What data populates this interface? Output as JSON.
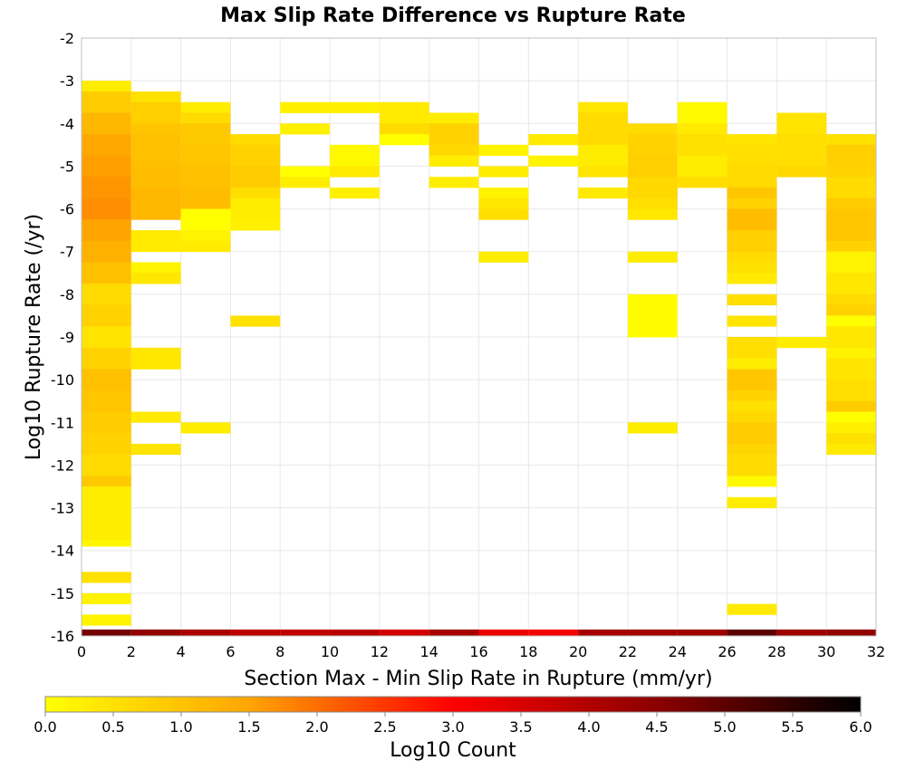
{
  "chart_data": {
    "type": "heatmap",
    "title": "Max Slip Rate Difference vs Rupture Rate",
    "xlabel": "Section Max - Min Slip Rate in Rupture (mm/yr)",
    "ylabel": "Log10 Rupture Rate (/yr)",
    "xlim": [
      0,
      32
    ],
    "ylim": [
      -16,
      -2
    ],
    "x_ticks": [
      "0",
      "2",
      "4",
      "6",
      "8",
      "10",
      "12",
      "14",
      "16",
      "18",
      "20",
      "22",
      "24",
      "26",
      "28",
      "30",
      "32"
    ],
    "y_ticks": [
      "-2",
      "-3",
      "-4",
      "-5",
      "-6",
      "-7",
      "-8",
      "-9",
      "-10",
      "-11",
      "-12",
      "-13",
      "-14",
      "-15",
      "-16"
    ],
    "x_bin_width": 2,
    "y_bin_height": 0.25,
    "grid": true,
    "colorbar": {
      "label": "Log10 Count",
      "range": [
        0,
        6
      ],
      "ticks": [
        "0.0",
        "0.5",
        "1.0",
        "1.5",
        "2.0",
        "2.5",
        "3.0",
        "3.5",
        "4.0",
        "4.5",
        "5.0",
        "5.5",
        "6.0"
      ],
      "colors": [
        "#ffff00",
        "#ffa500",
        "#ff0000",
        "#8b0000",
        "#000000"
      ]
    },
    "bins_note": "x = left edge of 2-wide bin (mm/yr); segments = [y_low, y_high, log10_count] in log10 rupture rate",
    "bins": [
      {
        "x": 0,
        "segments": [
          [
            -3.25,
            -3.0,
            0.3
          ],
          [
            -3.75,
            -3.25,
            0.85
          ],
          [
            -4.25,
            -3.75,
            1.2
          ],
          [
            -4.75,
            -4.25,
            1.45
          ],
          [
            -5.25,
            -4.75,
            1.55
          ],
          [
            -5.75,
            -5.25,
            1.65
          ],
          [
            -6.25,
            -5.75,
            1.7
          ],
          [
            -6.75,
            -6.25,
            1.5
          ],
          [
            -7.25,
            -6.75,
            1.3
          ],
          [
            -7.75,
            -7.25,
            1.05
          ],
          [
            -8.25,
            -7.75,
            0.6
          ],
          [
            -8.75,
            -8.25,
            0.75
          ],
          [
            -9.25,
            -8.75,
            0.45
          ],
          [
            -9.75,
            -9.25,
            0.75
          ],
          [
            -10.25,
            -9.75,
            1.05
          ],
          [
            -10.75,
            -10.25,
            0.95
          ],
          [
            -11.25,
            -10.75,
            0.85
          ],
          [
            -11.75,
            -11.25,
            0.75
          ],
          [
            -12.25,
            -11.75,
            0.6
          ],
          [
            -12.5,
            -12.25,
            0.9
          ],
          [
            -13.75,
            -12.5,
            0.3
          ],
          [
            -13.9,
            -13.75,
            0.15
          ],
          [
            -14.75,
            -14.5,
            0.5
          ],
          [
            -15.25,
            -15.0,
            0.2
          ],
          [
            -15.75,
            -15.5,
            0.2
          ],
          [
            -16.0,
            -15.85,
            4.75
          ]
        ]
      },
      {
        "x": 2,
        "segments": [
          [
            -3.5,
            -3.25,
            0.5
          ],
          [
            -4.0,
            -3.5,
            0.8
          ],
          [
            -4.25,
            -4.0,
            0.95
          ],
          [
            -5.0,
            -4.25,
            1.05
          ],
          [
            -5.5,
            -5.0,
            1.1
          ],
          [
            -6.25,
            -5.5,
            1.2
          ],
          [
            -7.0,
            -6.5,
            0.35
          ],
          [
            -7.5,
            -7.25,
            0.2
          ],
          [
            -7.75,
            -7.5,
            0.4
          ],
          [
            -9.75,
            -9.25,
            0.4
          ],
          [
            -11.0,
            -10.75,
            0.35
          ],
          [
            -11.75,
            -11.5,
            0.45
          ],
          [
            -16.0,
            -15.85,
            4.4
          ]
        ]
      },
      {
        "x": 4,
        "segments": [
          [
            -3.75,
            -3.5,
            0.3
          ],
          [
            -4.0,
            -3.75,
            0.6
          ],
          [
            -4.5,
            -4.0,
            0.9
          ],
          [
            -5.0,
            -4.5,
            0.95
          ],
          [
            -5.5,
            -5.0,
            1.05
          ],
          [
            -6.0,
            -5.5,
            1.1
          ],
          [
            -6.5,
            -6.0,
            0.0
          ],
          [
            -6.75,
            -6.5,
            0.2
          ],
          [
            -7.0,
            -6.75,
            0.35
          ],
          [
            -11.25,
            -11.0,
            0.3
          ],
          [
            -16.0,
            -15.85,
            4.1
          ]
        ]
      },
      {
        "x": 6,
        "segments": [
          [
            -4.5,
            -4.25,
            0.6
          ],
          [
            -5.0,
            -4.5,
            0.75
          ],
          [
            -5.5,
            -5.0,
            0.85
          ],
          [
            -5.75,
            -5.5,
            0.55
          ],
          [
            -6.25,
            -5.75,
            0.3
          ],
          [
            -6.5,
            -6.25,
            0.25
          ],
          [
            -8.75,
            -8.5,
            0.5
          ],
          [
            -16.0,
            -15.85,
            3.85
          ]
        ]
      },
      {
        "x": 8,
        "segments": [
          [
            -3.75,
            -3.5,
            0.25
          ],
          [
            -4.25,
            -4.0,
            0.25
          ],
          [
            -5.25,
            -5.0,
            0.0
          ],
          [
            -5.5,
            -5.25,
            0.3
          ],
          [
            -16.0,
            -15.85,
            3.8
          ]
        ]
      },
      {
        "x": 10,
        "segments": [
          [
            -3.75,
            -3.5,
            0.25
          ],
          [
            -5.0,
            -4.5,
            0.1
          ],
          [
            -5.25,
            -5.0,
            0.35
          ],
          [
            -5.75,
            -5.5,
            0.25
          ],
          [
            -16.0,
            -15.85,
            3.9
          ]
        ]
      },
      {
        "x": 12,
        "segments": [
          [
            -4.0,
            -3.5,
            0.35
          ],
          [
            -4.25,
            -4.0,
            0.6
          ],
          [
            -4.5,
            -4.25,
            0.0
          ],
          [
            -16.0,
            -15.85,
            3.6
          ]
        ]
      },
      {
        "x": 14,
        "segments": [
          [
            -4.0,
            -3.75,
            0.3
          ],
          [
            -4.5,
            -4.0,
            0.75
          ],
          [
            -4.75,
            -4.5,
            0.65
          ],
          [
            -5.0,
            -4.75,
            0.3
          ],
          [
            -5.5,
            -5.25,
            0.3
          ],
          [
            -16.0,
            -15.85,
            4.15
          ]
        ]
      },
      {
        "x": 16,
        "segments": [
          [
            -4.75,
            -4.5,
            0.2
          ],
          [
            -5.25,
            -5.0,
            0.3
          ],
          [
            -5.75,
            -5.5,
            0.2
          ],
          [
            -6.0,
            -5.75,
            0.4
          ],
          [
            -6.25,
            -6.0,
            0.55
          ],
          [
            -7.25,
            -7.0,
            0.3
          ],
          [
            -16.0,
            -15.85,
            3.25
          ]
        ]
      },
      {
        "x": 18,
        "segments": [
          [
            -4.5,
            -4.25,
            0.35
          ],
          [
            -5.0,
            -4.75,
            0.2
          ],
          [
            -16.0,
            -15.85,
            3.1
          ]
        ]
      },
      {
        "x": 20,
        "segments": [
          [
            -3.75,
            -3.5,
            0.4
          ],
          [
            -4.5,
            -3.75,
            0.6
          ],
          [
            -5.0,
            -4.5,
            0.3
          ],
          [
            -5.25,
            -5.0,
            0.45
          ],
          [
            -5.75,
            -5.5,
            0.35
          ],
          [
            -16.0,
            -15.85,
            4.15
          ]
        ]
      },
      {
        "x": 22,
        "segments": [
          [
            -4.25,
            -4.0,
            0.6
          ],
          [
            -4.75,
            -4.25,
            0.75
          ],
          [
            -5.25,
            -4.75,
            0.8
          ],
          [
            -5.75,
            -5.25,
            0.65
          ],
          [
            -6.0,
            -5.75,
            0.55
          ],
          [
            -6.25,
            -6.0,
            0.4
          ],
          [
            -7.25,
            -7.0,
            0.3
          ],
          [
            -8.25,
            -8.0,
            0.05
          ],
          [
            -9.0,
            -8.25,
            0.05
          ],
          [
            -11.25,
            -11.0,
            0.3
          ],
          [
            -16.0,
            -15.85,
            4.2
          ]
        ]
      },
      {
        "x": 24,
        "segments": [
          [
            -4.0,
            -3.5,
            0.1
          ],
          [
            -4.25,
            -4.0,
            0.35
          ],
          [
            -4.75,
            -4.25,
            0.5
          ],
          [
            -5.25,
            -4.75,
            0.3
          ],
          [
            -5.5,
            -5.25,
            0.55
          ],
          [
            -16.0,
            -15.85,
            4.25
          ]
        ]
      },
      {
        "x": 26,
        "segments": [
          [
            -4.5,
            -4.25,
            0.45
          ],
          [
            -5.0,
            -4.5,
            0.55
          ],
          [
            -5.5,
            -5.0,
            0.6
          ],
          [
            -5.75,
            -5.5,
            0.95
          ],
          [
            -6.0,
            -5.75,
            0.75
          ],
          [
            -6.5,
            -6.0,
            1.1
          ],
          [
            -7.0,
            -6.5,
            0.8
          ],
          [
            -7.25,
            -7.0,
            0.6
          ],
          [
            -7.5,
            -7.25,
            0.5
          ],
          [
            -7.75,
            -7.5,
            0.35
          ],
          [
            -8.25,
            -8.0,
            0.55
          ],
          [
            -8.75,
            -8.5,
            0.45
          ],
          [
            -9.5,
            -9.0,
            0.55
          ],
          [
            -9.75,
            -9.5,
            0.3
          ],
          [
            -10.25,
            -9.75,
            0.95
          ],
          [
            -10.5,
            -10.25,
            0.75
          ],
          [
            -10.75,
            -10.5,
            0.5
          ],
          [
            -11.0,
            -10.75,
            0.65
          ],
          [
            -11.5,
            -11.0,
            0.85
          ],
          [
            -11.75,
            -11.5,
            0.7
          ],
          [
            -12.25,
            -11.75,
            0.6
          ],
          [
            -12.5,
            -12.25,
            0.1
          ],
          [
            -13.0,
            -12.75,
            0.3
          ],
          [
            -15.5,
            -15.25,
            0.35
          ],
          [
            -16.0,
            -15.85,
            5.0
          ]
        ]
      },
      {
        "x": 28,
        "segments": [
          [
            -4.25,
            -3.75,
            0.45
          ],
          [
            -4.5,
            -4.25,
            0.55
          ],
          [
            -5.0,
            -4.5,
            0.55
          ],
          [
            -5.25,
            -5.0,
            0.65
          ],
          [
            -9.25,
            -9.0,
            0.3
          ],
          [
            -16.0,
            -15.85,
            4.25
          ]
        ]
      },
      {
        "x": 30,
        "segments": [
          [
            -4.5,
            -4.25,
            0.5
          ],
          [
            -5.0,
            -4.5,
            0.8
          ],
          [
            -5.25,
            -5.0,
            0.75
          ],
          [
            -5.75,
            -5.25,
            0.6
          ],
          [
            -6.0,
            -5.75,
            0.85
          ],
          [
            -6.75,
            -6.0,
            0.95
          ],
          [
            -7.0,
            -6.75,
            0.75
          ],
          [
            -7.5,
            -7.0,
            0.2
          ],
          [
            -8.0,
            -7.5,
            0.4
          ],
          [
            -8.25,
            -8.0,
            0.6
          ],
          [
            -8.5,
            -8.25,
            0.75
          ],
          [
            -8.75,
            -8.5,
            0.0
          ],
          [
            -9.25,
            -8.75,
            0.4
          ],
          [
            -9.5,
            -9.25,
            0.2
          ],
          [
            -10.0,
            -9.5,
            0.45
          ],
          [
            -10.5,
            -10.0,
            0.55
          ],
          [
            -10.75,
            -10.5,
            0.85
          ],
          [
            -11.0,
            -10.75,
            0.0
          ],
          [
            -11.25,
            -11.0,
            0.25
          ],
          [
            -11.5,
            -11.25,
            0.5
          ],
          [
            -11.75,
            -11.5,
            0.35
          ],
          [
            -16.0,
            -15.85,
            4.4
          ]
        ]
      }
    ]
  }
}
